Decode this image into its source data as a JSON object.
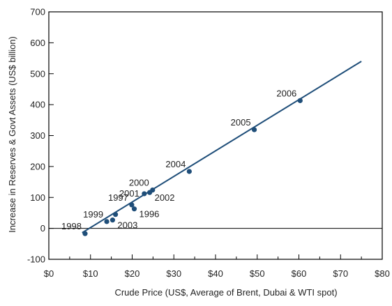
{
  "chart_data": {
    "type": "scatter",
    "title": "",
    "xlabel": "Crude Price (US$, Average of Brent, Dubai & WTI spot)",
    "ylabel": "Increase in Reserves & Govt Assets (US$ billion)",
    "xlim": [
      0,
      80
    ],
    "ylim": [
      -100,
      700
    ],
    "x_ticks": [
      0,
      10,
      20,
      30,
      40,
      50,
      60,
      70,
      80
    ],
    "x_tick_labels": [
      "$0",
      "$10",
      "$20",
      "$30",
      "$40",
      "$50",
      "$60",
      "$70",
      "$80"
    ],
    "y_ticks": [
      -100,
      0,
      100,
      200,
      300,
      400,
      500,
      600,
      700
    ],
    "y_tick_labels": [
      "-100",
      "0",
      "100",
      "200",
      "300",
      "400",
      "500",
      "600",
      "700"
    ],
    "grid": false,
    "points": [
      {
        "label": "1996",
        "x": 20.5,
        "y": 63,
        "label_pos": "right"
      },
      {
        "label": "1997",
        "x": 19.9,
        "y": 76,
        "label_pos": "upper-left"
      },
      {
        "label": "1998",
        "x": 8.7,
        "y": -17,
        "label_pos": "upper-left"
      },
      {
        "label": "1999",
        "x": 13.9,
        "y": 22,
        "label_pos": "upper-left"
      },
      {
        "label": "2000",
        "x": 24.9,
        "y": 124,
        "label_pos": "upper-left"
      },
      {
        "label": "2001",
        "x": 22.9,
        "y": 112,
        "label_pos": "left"
      },
      {
        "label": "2002",
        "x": 24.2,
        "y": 116,
        "label_pos": "right"
      },
      {
        "label": "2003",
        "x": 15.3,
        "y": 27,
        "label_pos": "right"
      },
      {
        "label": "2004",
        "x": 33.7,
        "y": 184,
        "label_pos": "upper-left"
      },
      {
        "label": "2005",
        "x": 49.3,
        "y": 319,
        "label_pos": "upper-left"
      },
      {
        "label": "2006",
        "x": 60.3,
        "y": 413,
        "label_pos": "upper-left"
      },
      {
        "label": "",
        "x": 16.0,
        "y": 45
      }
    ],
    "trendline": {
      "x": [
        8,
        75
      ],
      "y": [
        -14,
        540
      ]
    },
    "colors": {
      "line": "#1f4e79",
      "point": "#1f4e79",
      "axis": "#000000",
      "text": "#222222",
      "title": "#1f4e79"
    }
  }
}
